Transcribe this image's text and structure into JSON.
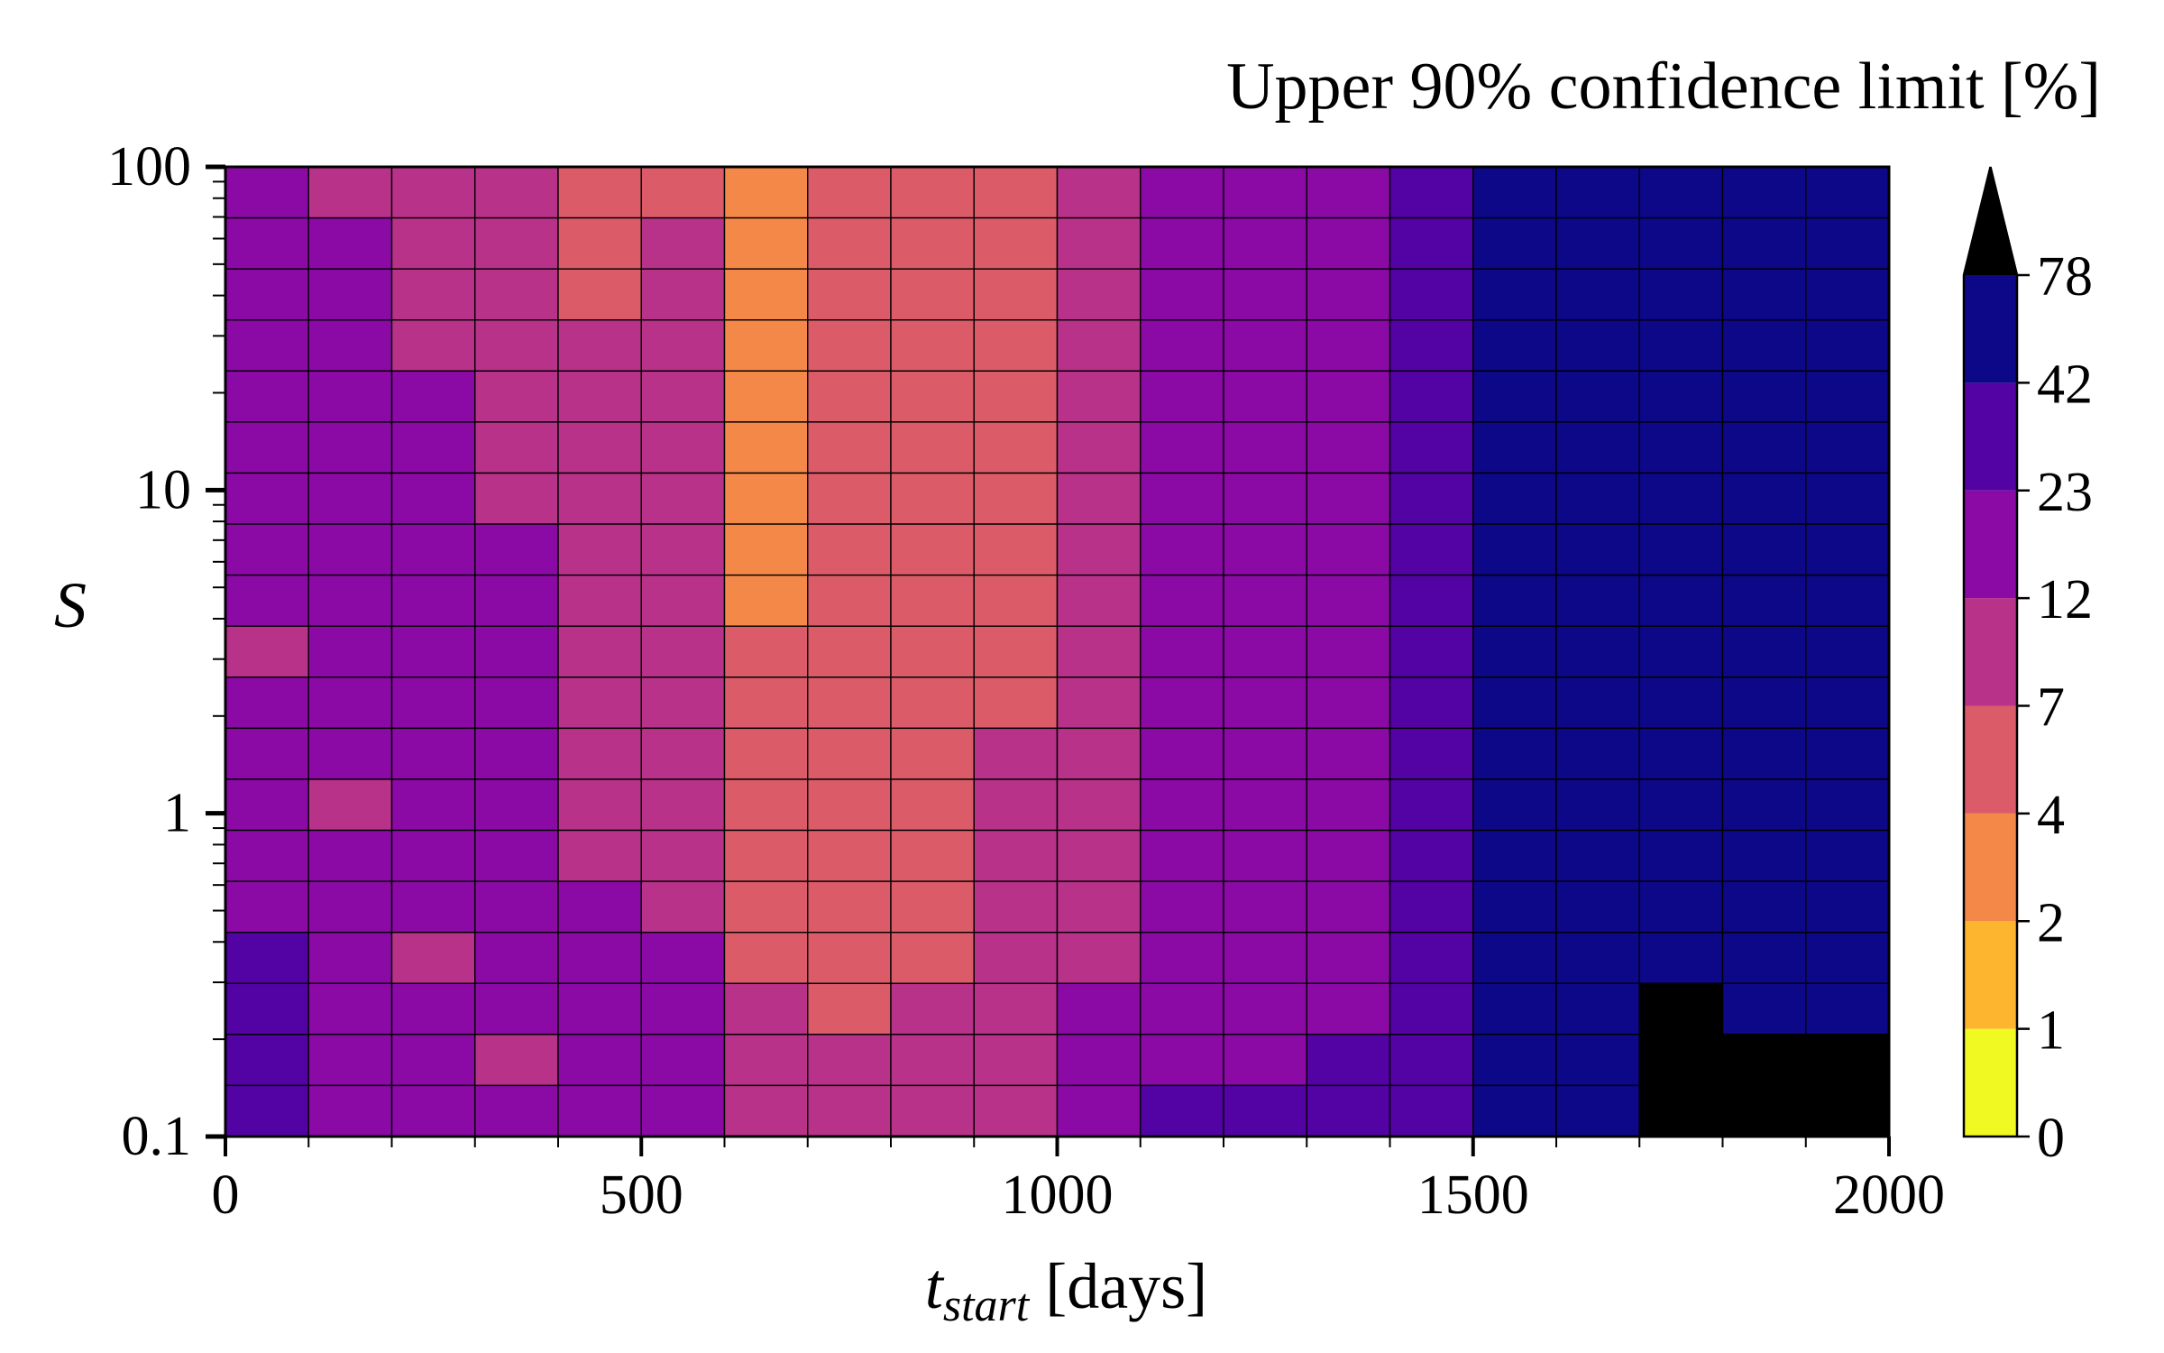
{
  "chart_data": {
    "type": "heatmap",
    "colorbar_title": "Upper 90% confidence limit [%]",
    "xlabel_main": "t",
    "xlabel_sub": "start",
    "xlabel_unit": " [days]",
    "ylabel": "S",
    "x_range": [
      0,
      2000
    ],
    "y_range": [
      0.1,
      100
    ],
    "y_scale": "log",
    "x_ticks": [
      0,
      500,
      1000,
      1500,
      2000
    ],
    "x_tick_labels": [
      "0",
      "500",
      "1000",
      "1500",
      "2000"
    ],
    "y_ticks": [
      0.1,
      1,
      10,
      100
    ],
    "y_tick_labels": [
      "0.1",
      "1",
      "10",
      "100"
    ],
    "x_bin_edges": [
      0,
      100,
      200,
      300,
      400,
      500,
      600,
      700,
      800,
      900,
      1000,
      1100,
      1200,
      1300,
      1400,
      1500,
      1600,
      1700,
      1800,
      1900,
      2000
    ],
    "y_rows": 19,
    "colorbar": {
      "tick_labels": [
        "0",
        "1",
        "2",
        "4",
        "7",
        "12",
        "23",
        "42",
        "78"
      ],
      "colors": [
        "#f0f921",
        "#fdb42f",
        "#f48849",
        "#db5c68",
        "#b83289",
        "#8b0aa5",
        "#5302a3",
        "#0d0887"
      ],
      "over_color": "#000000",
      "extend": "max"
    },
    "grid_bins_top_to_bottom": [
      [
        5,
        4,
        4,
        4,
        3,
        3,
        2,
        3,
        3,
        3,
        4,
        5,
        5,
        5,
        6,
        7,
        7,
        7,
        7,
        7
      ],
      [
        5,
        5,
        4,
        4,
        3,
        4,
        2,
        3,
        3,
        3,
        4,
        5,
        5,
        5,
        6,
        7,
        7,
        7,
        7,
        7
      ],
      [
        5,
        5,
        4,
        4,
        3,
        4,
        2,
        3,
        3,
        3,
        4,
        5,
        5,
        5,
        6,
        7,
        7,
        7,
        7,
        7
      ],
      [
        5,
        5,
        4,
        4,
        4,
        4,
        2,
        3,
        3,
        3,
        4,
        5,
        5,
        5,
        6,
        7,
        7,
        7,
        7,
        7
      ],
      [
        5,
        5,
        5,
        4,
        4,
        4,
        2,
        3,
        3,
        3,
        4,
        5,
        5,
        5,
        6,
        7,
        7,
        7,
        7,
        7
      ],
      [
        5,
        5,
        5,
        4,
        4,
        4,
        2,
        3,
        3,
        3,
        4,
        5,
        5,
        5,
        6,
        7,
        7,
        7,
        7,
        7
      ],
      [
        5,
        5,
        5,
        4,
        4,
        4,
        2,
        3,
        3,
        3,
        4,
        5,
        5,
        5,
        6,
        7,
        7,
        7,
        7,
        7
      ],
      [
        5,
        5,
        5,
        5,
        4,
        4,
        2,
        3,
        3,
        3,
        4,
        5,
        5,
        5,
        6,
        7,
        7,
        7,
        7,
        7
      ],
      [
        5,
        5,
        5,
        5,
        4,
        4,
        2,
        3,
        3,
        3,
        4,
        5,
        5,
        5,
        6,
        7,
        7,
        7,
        7,
        7
      ],
      [
        4,
        5,
        5,
        5,
        4,
        4,
        3,
        3,
        3,
        3,
        4,
        5,
        5,
        5,
        6,
        7,
        7,
        7,
        7,
        7
      ],
      [
        5,
        5,
        5,
        5,
        4,
        4,
        3,
        3,
        3,
        3,
        4,
        5,
        5,
        5,
        6,
        7,
        7,
        7,
        7,
        7
      ],
      [
        5,
        5,
        5,
        5,
        4,
        4,
        3,
        3,
        3,
        4,
        4,
        5,
        5,
        5,
        6,
        7,
        7,
        7,
        7,
        7
      ],
      [
        5,
        4,
        5,
        5,
        4,
        4,
        3,
        3,
        3,
        4,
        4,
        5,
        5,
        5,
        6,
        7,
        7,
        7,
        7,
        7
      ],
      [
        5,
        5,
        5,
        5,
        4,
        4,
        3,
        3,
        3,
        4,
        4,
        5,
        5,
        5,
        6,
        7,
        7,
        7,
        7,
        7
      ],
      [
        5,
        5,
        5,
        5,
        5,
        4,
        3,
        3,
        3,
        4,
        4,
        5,
        5,
        5,
        6,
        7,
        7,
        7,
        7,
        7
      ],
      [
        6,
        5,
        4,
        5,
        5,
        5,
        3,
        3,
        3,
        4,
        4,
        5,
        5,
        5,
        6,
        7,
        7,
        7,
        7,
        7
      ],
      [
        6,
        5,
        5,
        5,
        5,
        5,
        4,
        3,
        4,
        4,
        5,
        5,
        5,
        5,
        6,
        7,
        7,
        8,
        7,
        7
      ],
      [
        6,
        5,
        5,
        4,
        5,
        5,
        4,
        4,
        4,
        4,
        5,
        5,
        5,
        6,
        6,
        7,
        7,
        8,
        8,
        8
      ],
      [
        6,
        5,
        5,
        5,
        5,
        5,
        4,
        4,
        4,
        4,
        5,
        6,
        6,
        6,
        6,
        7,
        7,
        8,
        8,
        8
      ]
    ]
  }
}
